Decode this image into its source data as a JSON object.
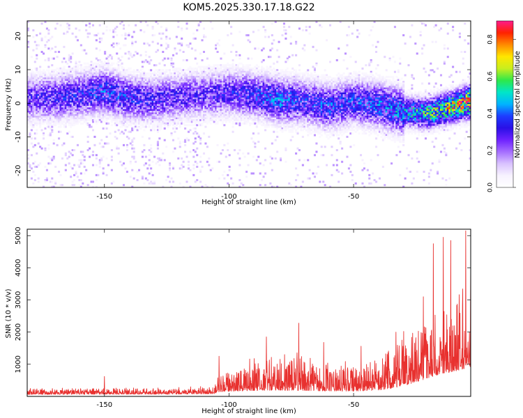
{
  "title": "KOM5.2025.330.17.18.G22",
  "colors": {
    "snr_line": "#e8312f",
    "colormap": [
      "#ffffff",
      "#f7f2ff",
      "#d9c2ff",
      "#a56dff",
      "#6e22ff",
      "#2a10e6",
      "#1d3cff",
      "#00b4ff",
      "#00e6c8",
      "#2ee84a",
      "#c8ee1e",
      "#ffe600",
      "#ff8a00",
      "#ff2200",
      "#ff1a8c"
    ]
  },
  "chart_data": [
    {
      "type": "heatmap",
      "title": "KOM5.2025.330.17.18.G22",
      "xlabel": "Height of straight line (km)",
      "ylabel": "Frequency (Hz)",
      "xlim": [
        -181,
        -3
      ],
      "ylim": [
        -25,
        24.5
      ],
      "xticks": [
        -150,
        -100,
        -50
      ],
      "yticks": [
        -20,
        -10,
        0,
        10,
        20
      ],
      "colorbar": {
        "label": "Normalized spectral amplitude",
        "range": [
          0,
          0.9
        ],
        "ticks": [
          0.0,
          0.2,
          0.4,
          0.6,
          0.8
        ]
      },
      "ridge_center_hz": [
        [
          -181,
          1.5
        ],
        [
          -170,
          1.5
        ],
        [
          -160,
          2.5
        ],
        [
          -150,
          3.5
        ],
        [
          -140,
          1.5
        ],
        [
          -130,
          1.0
        ],
        [
          -120,
          2.0
        ],
        [
          -110,
          2.5
        ],
        [
          -100,
          3.0
        ],
        [
          -90,
          2.5
        ],
        [
          -80,
          1.0
        ],
        [
          -70,
          0.5
        ],
        [
          -60,
          -1.0
        ],
        [
          -50,
          0.5
        ],
        [
          -40,
          -0.5
        ],
        [
          -30,
          -2.5
        ],
        [
          -20,
          -3.0
        ],
        [
          -10,
          -1.0
        ],
        [
          -3,
          0.5
        ]
      ],
      "peak_amplitude": [
        [
          -181,
          0.28
        ],
        [
          -165,
          0.32
        ],
        [
          -150,
          0.36
        ],
        [
          -130,
          0.3
        ],
        [
          -110,
          0.28
        ],
        [
          -100,
          0.31
        ],
        [
          -90,
          0.34
        ],
        [
          -80,
          0.4
        ],
        [
          -70,
          0.33
        ],
        [
          -60,
          0.36
        ],
        [
          -50,
          0.35
        ],
        [
          -40,
          0.38
        ],
        [
          -30,
          0.45
        ],
        [
          -20,
          0.55
        ],
        [
          -10,
          0.68
        ],
        [
          -3,
          0.85
        ]
      ]
    },
    {
      "type": "line",
      "series": [
        {
          "name": "SNR"
        }
      ],
      "xlabel": "Height of straight line (km)",
      "ylabel": "SNR (10 * v/v)",
      "xlim": [
        -181,
        -3
      ],
      "ylim": [
        0,
        5200
      ],
      "xticks": [
        -150,
        -100,
        -50
      ],
      "yticks": [
        1000,
        2000,
        3000,
        4000,
        5000
      ],
      "envelope_base": [
        [
          -181,
          170
        ],
        [
          -150,
          190
        ],
        [
          -125,
          190
        ],
        [
          -106,
          230
        ],
        [
          -104,
          420
        ],
        [
          -90,
          520
        ],
        [
          -80,
          550
        ],
        [
          -70,
          520
        ],
        [
          -60,
          480
        ],
        [
          -50,
          460
        ],
        [
          -40,
          560
        ],
        [
          -35,
          700
        ],
        [
          -30,
          950
        ],
        [
          -25,
          1250
        ],
        [
          -20,
          1650
        ],
        [
          -15,
          2000
        ],
        [
          -10,
          2200
        ],
        [
          -5,
          2500
        ],
        [
          -3,
          2650
        ]
      ],
      "envelope_amplitude": [
        [
          -181,
          200
        ],
        [
          -150,
          230
        ],
        [
          -125,
          200
        ],
        [
          -106,
          270
        ],
        [
          -104,
          700
        ],
        [
          -90,
          1100
        ],
        [
          -80,
          1300
        ],
        [
          -70,
          1200
        ],
        [
          -60,
          1000
        ],
        [
          -50,
          950
        ],
        [
          -40,
          1100
        ],
        [
          -30,
          1700
        ],
        [
          -20,
          2400
        ],
        [
          -10,
          2700
        ],
        [
          -3,
          2800
        ]
      ],
      "peaks": [
        [
          -150,
          620
        ],
        [
          -104,
          1250
        ],
        [
          -85,
          1850
        ],
        [
          -72,
          2280
        ],
        [
          -62,
          1680
        ],
        [
          -47,
          1560
        ],
        [
          -33,
          2000
        ],
        [
          -22,
          3100
        ],
        [
          -18,
          4750
        ],
        [
          -14,
          4950
        ],
        [
          -11,
          4850
        ],
        [
          -5,
          5150
        ],
        [
          -3,
          4100
        ]
      ],
      "samples_per_km": 10
    }
  ]
}
